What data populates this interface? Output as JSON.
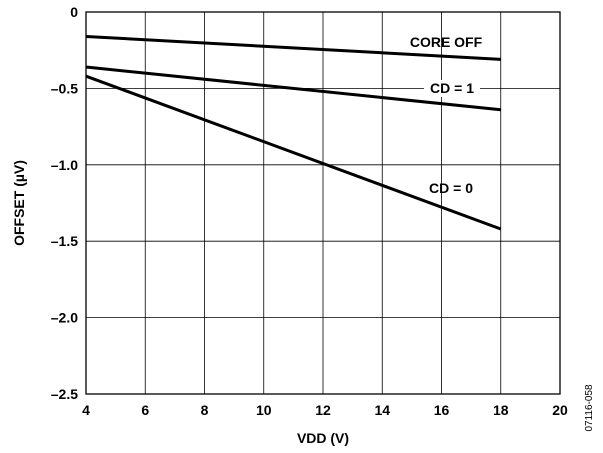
{
  "chart_data": {
    "type": "line",
    "title": "",
    "xlabel": "VDD (V)",
    "ylabel": "OFFSET (µV)",
    "xlim": [
      4,
      20
    ],
    "ylim": [
      -2.5,
      0
    ],
    "x_ticks": [
      "4",
      "6",
      "8",
      "10",
      "12",
      "14",
      "16",
      "18",
      "20"
    ],
    "y_ticks": [
      "0",
      "–0.5",
      "–1.0",
      "–1.5",
      "–2.0",
      "–2.5"
    ],
    "grid": true,
    "legend": "none (series labeled directly on plot)",
    "series": [
      {
        "name": "CORE OFF",
        "x": [
          4,
          18
        ],
        "y": [
          -0.16,
          -0.31
        ]
      },
      {
        "name": "CD = 1",
        "x": [
          4,
          18
        ],
        "y": [
          -0.36,
          -0.64
        ]
      },
      {
        "name": "CD = 0",
        "x": [
          4,
          18
        ],
        "y": [
          -0.42,
          -1.42
        ]
      }
    ],
    "line_color": "#000000"
  },
  "figure_id": "07116-058"
}
